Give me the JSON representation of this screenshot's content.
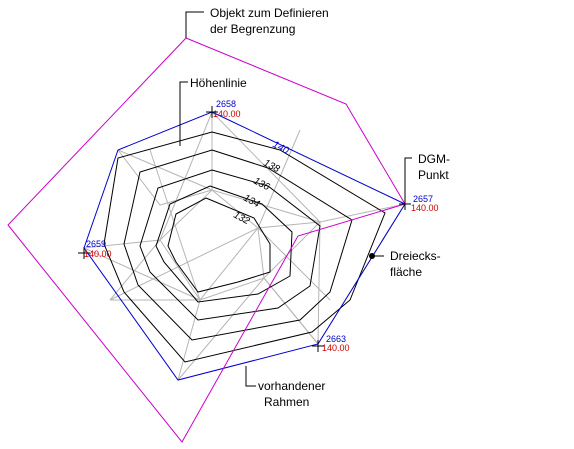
{
  "callouts": {
    "boundary_object": [
      "Objekt zum Definieren",
      "der Begrenzung"
    ],
    "contour": [
      "Höhenlinie"
    ],
    "point": [
      "DGM-",
      "Punkt"
    ],
    "triangle_face": [
      "Dreiecks-",
      "fläche"
    ],
    "existing_frame": [
      "vorhandener",
      "Rahmen"
    ]
  },
  "points": [
    {
      "id": "2658",
      "elevation": "140.00"
    },
    {
      "id": "2657",
      "elevation": "140.00"
    },
    {
      "id": "2659",
      "elevation": "140.00"
    },
    {
      "id": "2663",
      "elevation": "140.00"
    }
  ],
  "contour_labels": [
    "140",
    "138",
    "136",
    "134",
    "132"
  ],
  "colors": {
    "boundary": "#cc00cc",
    "frame": "#0000cc",
    "contour": "#000000",
    "triangles": "#b0b0b0",
    "point_id": "#0000cc",
    "point_elevation": "#cc0000"
  }
}
